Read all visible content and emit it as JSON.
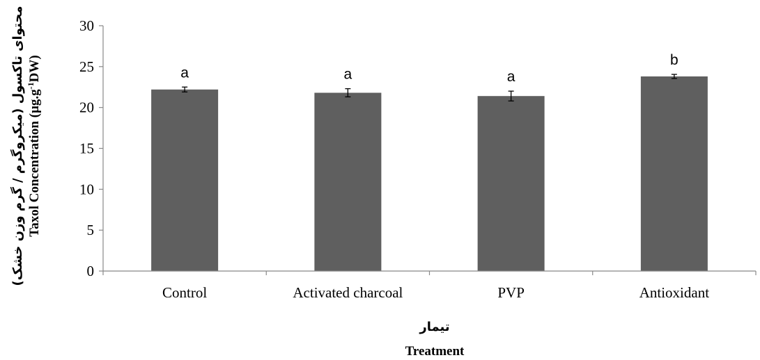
{
  "chart_data": {
    "type": "bar",
    "categories": [
      "Control",
      "Activated charcoal",
      "PVP",
      "Antioxidant"
    ],
    "values": [
      22.2,
      21.8,
      21.4,
      23.8
    ],
    "errors": [
      0.3,
      0.5,
      0.6,
      0.25
    ],
    "significance_letters": [
      "a",
      "a",
      "a",
      "b"
    ],
    "bar_color": "#5f5f5f",
    "ylim": [
      0,
      30
    ],
    "yticks": [
      0,
      5,
      10,
      15,
      20,
      25,
      30
    ],
    "grid": false,
    "xlabel_fa": "تیمار",
    "xlabel": "Treatment",
    "ylabel_fa": "محتوای تاکسول (میکروگرم / گرم وزن خشک)",
    "ylabel_main": "Taxol Concentration (µg.g",
    "ylabel_sup": "-1",
    "ylabel_end": "DW)"
  }
}
